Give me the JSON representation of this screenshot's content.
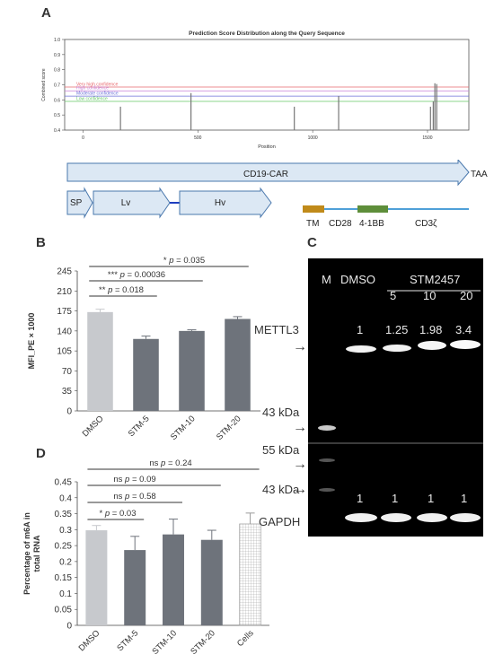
{
  "panels": {
    "a": "A",
    "b": "B",
    "c": "C",
    "d": "D"
  },
  "chart_data": [
    {
      "id": "prediction",
      "type": "bar",
      "title": "Prediction Score Distribution along the Query Sequence",
      "xlabel": "Position",
      "ylabel": "Combined score",
      "xlim": [
        -80,
        1680
      ],
      "ylim": [
        0.4,
        1.0
      ],
      "x_ticks": [
        0,
        500,
        1000,
        1500
      ],
      "y_ticks": [
        "0.4",
        "0.5",
        "0.6",
        "0.7",
        "0.8",
        "0.9",
        "1.0"
      ],
      "thresholds": [
        {
          "name": "Very high confidence",
          "value": 0.685,
          "color": "#e8666b"
        },
        {
          "name": "High confidence",
          "value": 0.66,
          "color": "#c77fd6"
        },
        {
          "name": "Moderate confidence",
          "value": 0.625,
          "color": "#6b70d8"
        },
        {
          "name": "Low confidence",
          "value": 0.59,
          "color": "#69c969"
        }
      ],
      "x": [
        163,
        470,
        920,
        1113,
        1513,
        1525,
        1532,
        1540
      ],
      "values": [
        0.555,
        0.645,
        0.555,
        0.625,
        0.555,
        0.59,
        0.71,
        0.705
      ]
    },
    {
      "id": "mfi",
      "type": "bar",
      "ylabel": "MFI_PE × 1000",
      "ylim": [
        0,
        245
      ],
      "y_ticks": [
        "0",
        "35",
        "70",
        "105",
        "140",
        "175",
        "210",
        "245"
      ],
      "categories": [
        "DMSO",
        "STM-5",
        "STM-10",
        "STM-20"
      ],
      "values": [
        173,
        126,
        140,
        161
      ],
      "errors": [
        5,
        5,
        2,
        4
      ],
      "colors": [
        "#c7c9cd",
        "#6e737b",
        "#6e737b",
        "#6e737b"
      ],
      "significance": [
        {
          "label": "** p = 0.018",
          "from": 0,
          "to": 1
        },
        {
          "label": "*** p = 0.00036",
          "from": 0,
          "to": 2
        },
        {
          "label": "* p = 0.035",
          "from": 0,
          "to": 3
        }
      ]
    },
    {
      "id": "m6a",
      "type": "bar",
      "ylabel": "Percentage of m6A in total RNA",
      "ylim": [
        0,
        0.45
      ],
      "y_ticks": [
        "0",
        "0.05",
        "0.1",
        "0.15",
        "0.2",
        "0.25",
        "0.3",
        "0.35",
        "0.4",
        "0.45"
      ],
      "categories": [
        "DMSO",
        "STM-5",
        "STM-10",
        "STM-20",
        "Cells"
      ],
      "values": [
        0.298,
        0.236,
        0.285,
        0.268,
        0.318
      ],
      "errors": [
        0.015,
        0.043,
        0.048,
        0.03,
        0.034
      ],
      "colors": [
        "#c7c9cd",
        "#6e737b",
        "#6e737b",
        "#6e737b",
        "#ffffff"
      ],
      "significance": [
        {
          "label": "* p = 0.03",
          "from": 0,
          "to": 1
        },
        {
          "label": "ns p = 0.58",
          "from": 0,
          "to": 2
        },
        {
          "label": "ns p = 0.09",
          "from": 0,
          "to": 3
        },
        {
          "label": "ns p = 0.24",
          "from": 0,
          "to": 4
        }
      ]
    }
  ],
  "construct": {
    "car_label": "CD19-CAR",
    "stop_codon": "TAA",
    "sp": "SP",
    "lv": "Lv",
    "hv": "Hv",
    "tm": "TM",
    "cd28": "CD28",
    "bb": "4-1BB",
    "cd3z": "CD3ζ",
    "colors": {
      "arrow_fill": "#dce8f4",
      "arrow_stroke": "#4a78ad",
      "linker": "#1f3fbf",
      "backbone": "#4fa0d8",
      "tm": "#c08a1a",
      "bb": "#5e8e3a"
    }
  },
  "blot": {
    "lanes": [
      "M",
      "DMSO",
      "5",
      "10",
      "20"
    ],
    "group_label": "STM2457",
    "mettl3_label": "METTL3",
    "gapdh_label": "GAPDH",
    "marker_43_top": "43 kDa",
    "marker_55": "55 kDa",
    "marker_43_bottom": "43 kDa",
    "mettl3_values": [
      "1",
      "1.25",
      "1.98",
      "3.4"
    ],
    "gapdh_values": [
      "1",
      "1",
      "1",
      "1"
    ],
    "arrow": "→"
  }
}
